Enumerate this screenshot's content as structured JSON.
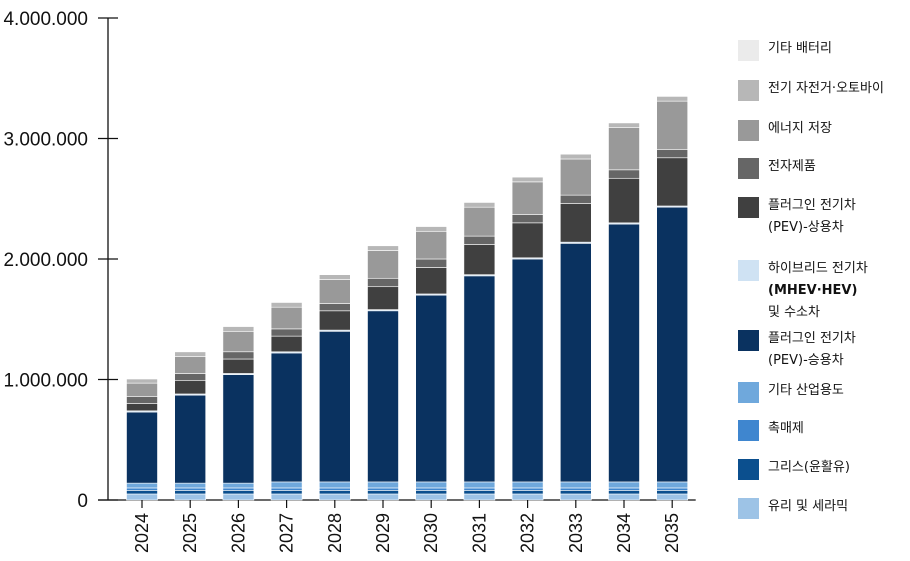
{
  "chart_data": {
    "type": "bar",
    "stacked": true,
    "categories": [
      "2024",
      "2025",
      "2026",
      "2027",
      "2028",
      "2029",
      "2030",
      "2031",
      "2032",
      "2033",
      "2034",
      "2035"
    ],
    "ylim": [
      0,
      4000000
    ],
    "yticks": [
      0,
      1000000,
      2000000,
      3000000,
      4000000
    ],
    "ytick_labels": [
      "0",
      "1.000.000",
      "2.000.000",
      "3.000.000",
      "4.000.000"
    ],
    "series": [
      {
        "name": "유리 및 세라믹",
        "color": "#9dc3e6",
        "values": [
          50000,
          50000,
          50000,
          50000,
          50000,
          50000,
          50000,
          50000,
          50000,
          50000,
          50000,
          50000
        ]
      },
      {
        "name": "그리스(윤활유)",
        "color": "#0b4f8e",
        "values": [
          30000,
          30000,
          30000,
          30000,
          30000,
          30000,
          30000,
          30000,
          30000,
          30000,
          30000,
          30000
        ]
      },
      {
        "name": "촉매제",
        "color": "#3f86cf",
        "values": [
          20000,
          20000,
          20000,
          20000,
          20000,
          20000,
          20000,
          20000,
          20000,
          20000,
          20000,
          20000
        ]
      },
      {
        "name": "기타 산업용도",
        "color": "#6fa8dc",
        "values": [
          40000,
          40000,
          40000,
          50000,
          50000,
          50000,
          50000,
          50000,
          50000,
          50000,
          50000,
          50000
        ]
      },
      {
        "name": "플러그인 전기차 (PEV)-승용차",
        "color": "#0a3260",
        "values": [
          590000,
          730000,
          900000,
          1070000,
          1250000,
          1420000,
          1550000,
          1710000,
          1850000,
          1980000,
          2140000,
          2280000
        ]
      },
      {
        "name": "하이브리드 전기차 (MHEV·HEV) 및 수소차",
        "color": "#cfe2f3",
        "values": [
          10000,
          10000,
          10000,
          10000,
          10000,
          10000,
          10000,
          10000,
          10000,
          10000,
          10000,
          10000
        ]
      },
      {
        "name": "플러그인 전기차 (PEV)-상용차",
        "color": "#404040",
        "values": [
          60000,
          110000,
          120000,
          130000,
          160000,
          190000,
          220000,
          250000,
          290000,
          320000,
          370000,
          400000
        ]
      },
      {
        "name": "전자제품",
        "color": "#666666",
        "values": [
          60000,
          60000,
          60000,
          60000,
          60000,
          70000,
          70000,
          70000,
          70000,
          70000,
          70000,
          70000
        ]
      },
      {
        "name": "에너지 저장",
        "color": "#999999",
        "values": [
          110000,
          140000,
          170000,
          180000,
          200000,
          230000,
          230000,
          240000,
          270000,
          300000,
          350000,
          400000
        ]
      },
      {
        "name": "전기 자전거·오토바이",
        "color": "#b7b7b7",
        "values": [
          35000,
          40000,
          40000,
          40000,
          40000,
          40000,
          40000,
          40000,
          40000,
          40000,
          40000,
          40000
        ]
      },
      {
        "name": "기타 배터리",
        "color": "#ebebeb",
        "values": [
          5000,
          5000,
          5000,
          5000,
          5000,
          5000,
          5000,
          5000,
          5000,
          5000,
          5000,
          5000
        ]
      }
    ]
  },
  "legend": [
    {
      "lines": [
        "기타 배터리"
      ],
      "bold": [],
      "color": "#ebebeb"
    },
    {
      "lines": [
        "전기 자전거·오토바이"
      ],
      "bold": [],
      "color": "#b7b7b7"
    },
    {
      "lines": [
        "에너지 저장"
      ],
      "bold": [],
      "color": "#999999"
    },
    {
      "lines": [
        "전자제품"
      ],
      "bold": [],
      "color": "#666666"
    },
    {
      "lines": [
        "플러그인   전기차",
        "(PEV)-상용차"
      ],
      "bold": [],
      "color": "#404040"
    },
    {
      "lines": [
        "하이브리드 전기차",
        "(MHEV·HEV)",
        "및 수소차"
      ],
      "bold": [
        1
      ],
      "color": "#cfe2f3"
    },
    {
      "lines": [
        "플러그인 전기차",
        "(PEV)-승용차"
      ],
      "bold": [],
      "color": "#0a3260"
    },
    {
      "lines": [
        "기타 산업용도"
      ],
      "bold": [],
      "color": "#6fa8dc"
    },
    {
      "lines": [
        "촉매제"
      ],
      "bold": [],
      "color": "#3f86cf"
    },
    {
      "lines": [
        "그리스(윤활유)"
      ],
      "bold": [],
      "color": "#0b4f8e"
    },
    {
      "lines": [
        "유리 및 세라믹"
      ],
      "bold": [],
      "color": "#9dc3e6"
    }
  ]
}
